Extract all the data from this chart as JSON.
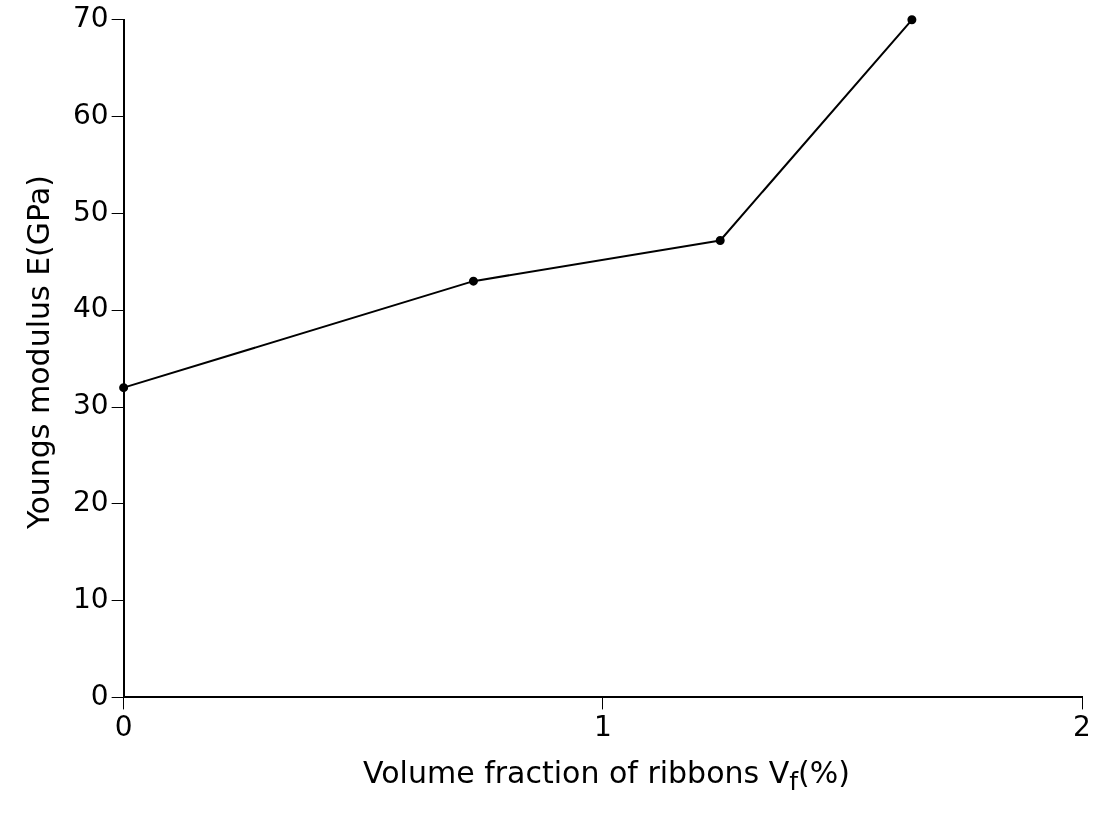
{
  "chart_data": {
    "type": "line",
    "xlabel": "Volume fraction of ribbons V$_{f}$(%)",
    "ylabel": "Youngs modulus E(GPa)",
    "x": [
      0,
      0.73,
      1.245,
      1.645
    ],
    "series": [
      {
        "color": "#000000",
        "values": [
          32,
          43,
          47.2,
          70
        ]
      }
    ],
    "xlim": [
      0,
      2
    ],
    "xticks": [
      0,
      1,
      2
    ],
    "ylim": [
      0,
      70
    ],
    "yticks": [
      0,
      10,
      20,
      30,
      40,
      50,
      60,
      70
    ],
    "grid": false,
    "legend": false,
    "marker": "circle",
    "line_style": "solid"
  }
}
